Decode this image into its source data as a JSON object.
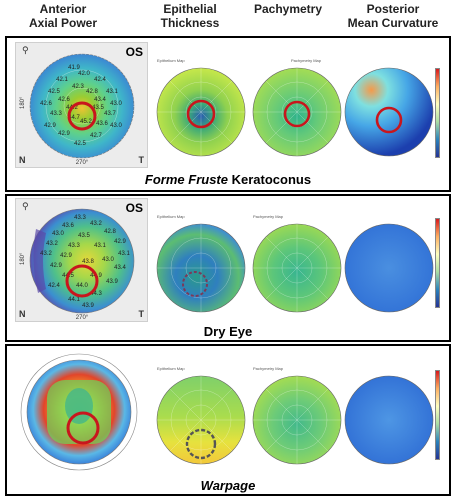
{
  "columns": [
    {
      "line1": "Anterior",
      "line2": "Axial Power"
    },
    {
      "line1": "Epithelial",
      "line2": "Thickness"
    },
    {
      "line1": "Pachymetry",
      "line2": ""
    },
    {
      "line1": "Posterior",
      "line2": "Mean Curvature"
    }
  ],
  "panels": [
    {
      "caption_italic": "Forme Fruste",
      "caption_rest": " Keratoconus",
      "eye": "OS",
      "corner_left": "N",
      "corner_right": "T",
      "axial_values": [
        "41.9",
        "42.0",
        "42.1",
        "42.4",
        "42.3",
        "42.5",
        "42.8",
        "43.1",
        "42.6",
        "43.4",
        "42.6",
        "43.0",
        "44.2",
        "43.5",
        "43.3",
        "43.7",
        "44.7",
        "45.2",
        "43.6",
        "42.9",
        "43.0",
        "42.9",
        "42.7",
        "42.5"
      ],
      "axial_ticks": [
        "270°",
        "180°"
      ]
    },
    {
      "caption_italic": "",
      "caption_rest": "Dry Eye",
      "eye": "OS",
      "corner_left": "N",
      "corner_right": "T",
      "axial_values": [
        "43.3",
        "43.2",
        "43.6",
        "42.8",
        "43.0",
        "43.5",
        "42.9",
        "43.2",
        "43.3",
        "43.1",
        "43.1",
        "43.2",
        "42.9",
        "43.0",
        "43.8",
        "42.9",
        "43.4",
        "44.5",
        "44.9",
        "43.9",
        "44.0",
        "42.4",
        "44.3",
        "44.1",
        "43.9"
      ],
      "axial_ticks": [
        "270°",
        "180°"
      ]
    },
    {
      "caption_italic": "Warpage",
      "caption_rest": "",
      "eye": "",
      "corner_left": "",
      "corner_right": "",
      "axial_values": [],
      "axial_ticks": []
    }
  ],
  "map_titles": {
    "epithelial": "Epithelium Map",
    "pachymetry": "Pachymetry Map"
  },
  "colors": {
    "ring": "#c8161d",
    "ring_dashed": "#7a3a5a"
  }
}
